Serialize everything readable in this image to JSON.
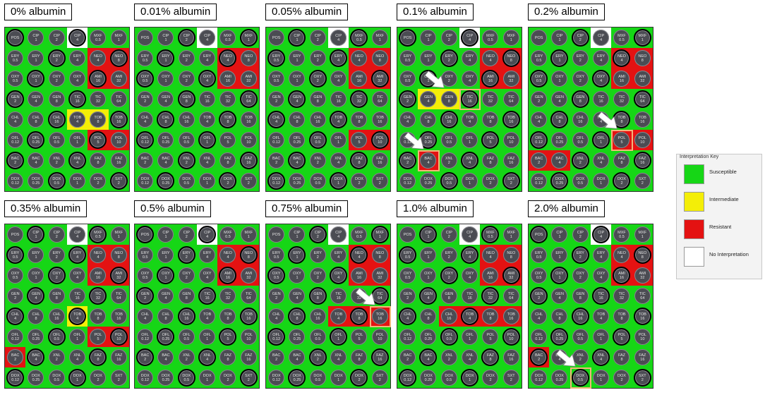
{
  "panels": [
    {
      "title": "0% albumin",
      "interp": [
        "sssnss",
        "ssssrr",
        "ssssrr",
        "ssssss",
        "sssiis",
        "ssssrr",
        "ssssss",
        "ssssss"
      ],
      "highlights": [],
      "arrows": []
    },
    {
      "title": "0.01% albumin",
      "interp": [
        "sssnss",
        "ssssrr",
        "ssssrr",
        "ssssss",
        "ssssss",
        "ssssss",
        "ssssss",
        "ssssss"
      ],
      "highlights": [],
      "arrows": []
    },
    {
      "title": "0.05% albumin",
      "interp": [
        "sssnss",
        "ssssrr",
        "ssssrr",
        "ssssss",
        "ssssss",
        "ssssrr",
        "ssssss",
        "ssssss"
      ],
      "highlights": [],
      "arrows": []
    },
    {
      "title": "0.1% albumin",
      "interp": [
        "sssnss",
        "ssssrr",
        "ssssrr",
        "siisss",
        "ssssss",
        "ssssss",
        "srssss",
        "ssssss"
      ],
      "highlights": [
        [
          3,
          3
        ],
        [
          6,
          1
        ]
      ],
      "arrows": [
        [
          2,
          1
        ],
        [
          5,
          0
        ]
      ]
    },
    {
      "title": "0.2% albumin",
      "interp": [
        "sssnss",
        "ssssrr",
        "ssssrr",
        "ssssss",
        "ssssss",
        "ssssrr",
        "rrssss",
        "ssssss"
      ],
      "highlights": [
        [
          5,
          4
        ]
      ],
      "arrows": [
        [
          4,
          3
        ]
      ]
    },
    {
      "title": "0.35% albumin",
      "interp": [
        "sssnss",
        "ssssrr",
        "ssssrr",
        "ssssss",
        "sssiss",
        "ssssrr",
        "rsssss",
        "ssssss"
      ],
      "highlights": [],
      "arrows": []
    },
    {
      "title": "0.5% albumin",
      "interp": [
        "sssnss",
        "ssssrr",
        "ssssrr",
        "ssssss",
        "ssssss",
        "ssssss",
        "ssssss",
        "ssssss"
      ],
      "highlights": [],
      "arrows": []
    },
    {
      "title": "0.75% albumin",
      "interp": [
        "sssnss",
        "ssssrr",
        "ssssrr",
        "ssssss",
        "sssrrr",
        "ssssss",
        "ssssss",
        "ssssss"
      ],
      "highlights": [
        [
          4,
          5
        ]
      ],
      "arrows": [
        [
          3,
          4
        ]
      ]
    },
    {
      "title": "1.0% albumin",
      "interp": [
        "sssnss",
        "ssssrr",
        "ssssrr",
        "ssssss",
        "ssrrrr",
        "ssssss",
        "ssssss",
        "ssssss"
      ],
      "highlights": [],
      "arrows": []
    },
    {
      "title": "2.0% albumin",
      "interp": [
        "sssnss",
        "ssssrr",
        "ssssrr",
        "ssssss",
        "ssssss",
        "ssssss",
        "rsssss",
        "ssssss"
      ],
      "highlights": [
        [
          7,
          2
        ]
      ],
      "arrows": [
        [
          6,
          1
        ]
      ]
    }
  ],
  "plate_labels": [
    [
      [
        "POS",
        ""
      ],
      [
        "CIP",
        "1"
      ],
      [
        "CIP",
        "2"
      ],
      [
        "CIP",
        "4"
      ],
      [
        "MXF",
        "0.5"
      ],
      [
        "MXF",
        "1"
      ]
    ],
    [
      [
        "ERY",
        "0.5"
      ],
      [
        "ERY",
        "1"
      ],
      [
        "ERY",
        "2"
      ],
      [
        "ERY",
        "4"
      ],
      [
        "NEO",
        "4"
      ],
      [
        "NEO",
        "8"
      ]
    ],
    [
      [
        "OXY",
        "0.5"
      ],
      [
        "OXY",
        "1"
      ],
      [
        "OXY",
        "2"
      ],
      [
        "OXY",
        "4"
      ],
      [
        "AMI",
        "16"
      ],
      [
        "AMI",
        "32"
      ]
    ],
    [
      [
        "GEN",
        "2"
      ],
      [
        "GEN",
        "4"
      ],
      [
        "GEN",
        "8"
      ],
      [
        "TIC",
        "16"
      ],
      [
        "TIC",
        "32"
      ],
      [
        "TIC",
        "64"
      ]
    ],
    [
      [
        "CHL",
        "4"
      ],
      [
        "CHL",
        "8"
      ],
      [
        "CHL",
        "16"
      ],
      [
        "TOB",
        "4"
      ],
      [
        "TOB",
        "8"
      ],
      [
        "TOB",
        "16"
      ]
    ],
    [
      [
        "OFL",
        "0.12"
      ],
      [
        "OFL",
        "0.25"
      ],
      [
        "OFL",
        "0.5"
      ],
      [
        "OFL",
        "1"
      ],
      [
        "POL",
        "5"
      ],
      [
        "POL",
        "10"
      ]
    ],
    [
      [
        "BAC",
        "2"
      ],
      [
        "BAC",
        "4"
      ],
      [
        "XNL",
        "2"
      ],
      [
        "XNL",
        "4"
      ],
      [
        "FAZ",
        "8"
      ],
      [
        "FAZ",
        "16"
      ]
    ],
    [
      [
        "DOX",
        "0.12"
      ],
      [
        "DOX",
        "0.25"
      ],
      [
        "DOX",
        "0.5"
      ],
      [
        "DOX",
        "1"
      ],
      [
        "DOX",
        "2"
      ],
      [
        "SXT",
        "2"
      ]
    ]
  ],
  "key": {
    "title": "Interpretation Key",
    "items": [
      {
        "code": "s",
        "label": "Susceptible",
        "color": "#16d616"
      },
      {
        "code": "i",
        "label": "Intermediate",
        "color": "#f4ee07"
      },
      {
        "code": "r",
        "label": "Resistant",
        "color": "#e41212"
      },
      {
        "code": "n",
        "label": "No Interpretation",
        "color": "#ffffff"
      }
    ]
  },
  "colors": {
    "highlight": "#f3b57a",
    "arrow": "#ffffff"
  }
}
